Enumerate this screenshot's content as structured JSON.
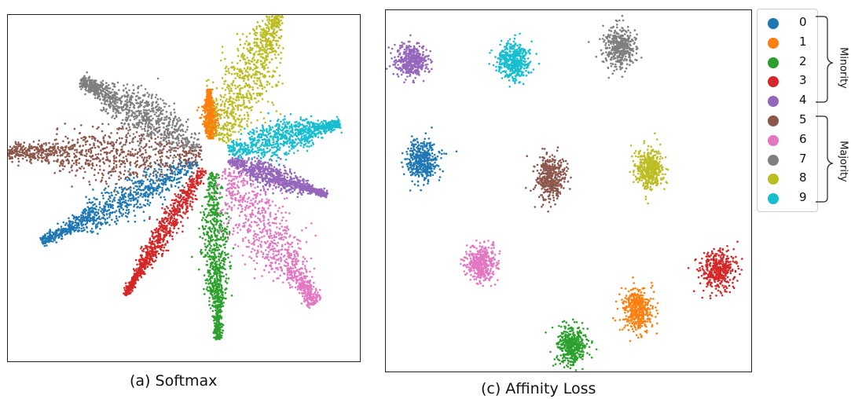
{
  "chart_data": [
    {
      "type": "scatter",
      "caption": "(a) Softmax",
      "note": "points drawn procedurally to approximate feature embedding clusters",
      "clusters": [
        {
          "class": "0",
          "shape": "ray",
          "angle_deg": 207,
          "r0": 0.05,
          "r1": 0.58,
          "spread": 0.045
        },
        {
          "class": "1",
          "shape": "ray",
          "angle_deg": 93,
          "r0": 0.05,
          "r1": 0.2,
          "spread": 0.018
        },
        {
          "class": "2",
          "shape": "ray",
          "angle_deg": 272,
          "r0": 0.05,
          "r1": 0.56,
          "spread": 0.035
        },
        {
          "class": "3",
          "shape": "ray",
          "angle_deg": 238,
          "r0": 0.05,
          "r1": 0.5,
          "spread": 0.03
        },
        {
          "class": "4",
          "shape": "ray",
          "angle_deg": 341,
          "r0": 0.05,
          "r1": 0.37,
          "spread": 0.028
        },
        {
          "class": "5",
          "shape": "ray",
          "angle_deg": 179,
          "r0": 0.03,
          "r1": 0.62,
          "spread": 0.075
        },
        {
          "class": "6",
          "shape": "ray",
          "angle_deg": 305,
          "r0": 0.05,
          "r1": 0.55,
          "spread": 0.075
        },
        {
          "class": "7",
          "shape": "ray",
          "angle_deg": 150,
          "r0": 0.05,
          "r1": 0.46,
          "spread": 0.06
        },
        {
          "class": "8",
          "shape": "ray",
          "angle_deg": 65,
          "r0": 0.05,
          "r1": 0.5,
          "spread": 0.07
        },
        {
          "class": "9",
          "shape": "ray",
          "angle_deg": 14,
          "r0": 0.05,
          "r1": 0.4,
          "spread": 0.045
        }
      ]
    },
    {
      "type": "scatter",
      "caption": "(c) Affinity Loss",
      "clusters": [
        {
          "class": "0",
          "shape": "blob",
          "cx": 0.1,
          "cy": 0.58,
          "rx": 0.045,
          "ry": 0.055
        },
        {
          "class": "1",
          "shape": "blob",
          "cx": 0.69,
          "cy": 0.17,
          "rx": 0.04,
          "ry": 0.06
        },
        {
          "class": "2",
          "shape": "blob",
          "cx": 0.51,
          "cy": 0.07,
          "rx": 0.04,
          "ry": 0.055
        },
        {
          "class": "3",
          "shape": "blob",
          "cx": 0.91,
          "cy": 0.28,
          "rx": 0.045,
          "ry": 0.055
        },
        {
          "class": "4",
          "shape": "blob",
          "cx": 0.07,
          "cy": 0.86,
          "rx": 0.045,
          "ry": 0.045
        },
        {
          "class": "5",
          "shape": "blob",
          "cx": 0.45,
          "cy": 0.54,
          "rx": 0.04,
          "ry": 0.06
        },
        {
          "class": "6",
          "shape": "blob",
          "cx": 0.26,
          "cy": 0.3,
          "rx": 0.045,
          "ry": 0.05
        },
        {
          "class": "7",
          "shape": "blob",
          "cx": 0.64,
          "cy": 0.9,
          "rx": 0.045,
          "ry": 0.055
        },
        {
          "class": "8",
          "shape": "blob",
          "cx": 0.72,
          "cy": 0.56,
          "rx": 0.04,
          "ry": 0.06
        },
        {
          "class": "9",
          "shape": "blob",
          "cx": 0.35,
          "cy": 0.86,
          "rx": 0.045,
          "ry": 0.05
        }
      ]
    }
  ],
  "legend": {
    "items": [
      {
        "label": "0",
        "color": "#1f77b4"
      },
      {
        "label": "1",
        "color": "#ff7f0e"
      },
      {
        "label": "2",
        "color": "#2ca02c"
      },
      {
        "label": "3",
        "color": "#d62728"
      },
      {
        "label": "4",
        "color": "#9467bd"
      },
      {
        "label": "5",
        "color": "#8c564b"
      },
      {
        "label": "6",
        "color": "#e377c2"
      },
      {
        "label": "7",
        "color": "#7f7f7f"
      },
      {
        "label": "8",
        "color": "#bcbd22"
      },
      {
        "label": "9",
        "color": "#17becf"
      }
    ],
    "groups": [
      {
        "label": "Minority",
        "classes": [
          "0",
          "1",
          "2",
          "3",
          "4"
        ]
      },
      {
        "label": "Majority",
        "classes": [
          "5",
          "6",
          "7",
          "8",
          "9"
        ]
      }
    ]
  }
}
